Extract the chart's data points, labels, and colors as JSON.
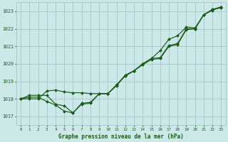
{
  "bg_color": "#cce8e8",
  "grid_color": "#aacccc",
  "line_color": "#1a5c1a",
  "marker_color": "#1a5c1a",
  "xlabel": "Graphe pression niveau de la mer (hPa)",
  "ylim": [
    1016.5,
    1023.5
  ],
  "xlim": [
    -0.5,
    23.5
  ],
  "yticks": [
    1017,
    1018,
    1019,
    1020,
    1021,
    1022,
    1023
  ],
  "xticks": [
    0,
    1,
    2,
    3,
    4,
    5,
    6,
    7,
    8,
    9,
    10,
    11,
    12,
    13,
    14,
    15,
    16,
    17,
    18,
    19,
    20,
    21,
    22,
    23
  ],
  "series": [
    [
      1018.0,
      1018.2,
      1018.2,
      1018.2,
      1017.7,
      1017.6,
      1017.2,
      1017.75,
      1017.8,
      1018.3,
      1018.3,
      1018.75,
      1019.35,
      1019.6,
      1019.95,
      1020.25,
      1020.3,
      1021.0,
      1021.1,
      1021.95,
      1022.0,
      1022.8,
      1023.1,
      1023.2
    ],
    [
      1018.0,
      1018.1,
      1018.1,
      1017.85,
      1017.65,
      1017.3,
      1017.2,
      1017.7,
      1017.75,
      1018.3,
      1018.3,
      1018.8,
      1019.35,
      1019.6,
      1020.0,
      1020.3,
      1020.35,
      1021.05,
      1021.15,
      1022.0,
      1022.0,
      1022.8,
      1023.1,
      1023.25
    ],
    [
      1018.0,
      1018.0,
      1018.0,
      1018.45,
      1018.5,
      1018.4,
      1018.35,
      1018.35,
      1018.3,
      1018.3,
      1018.3,
      1018.8,
      1019.3,
      1019.6,
      1020.0,
      1020.3,
      1020.75,
      1021.4,
      1021.6,
      1022.1,
      1022.05,
      1022.8,
      1023.05,
      1023.25
    ]
  ]
}
